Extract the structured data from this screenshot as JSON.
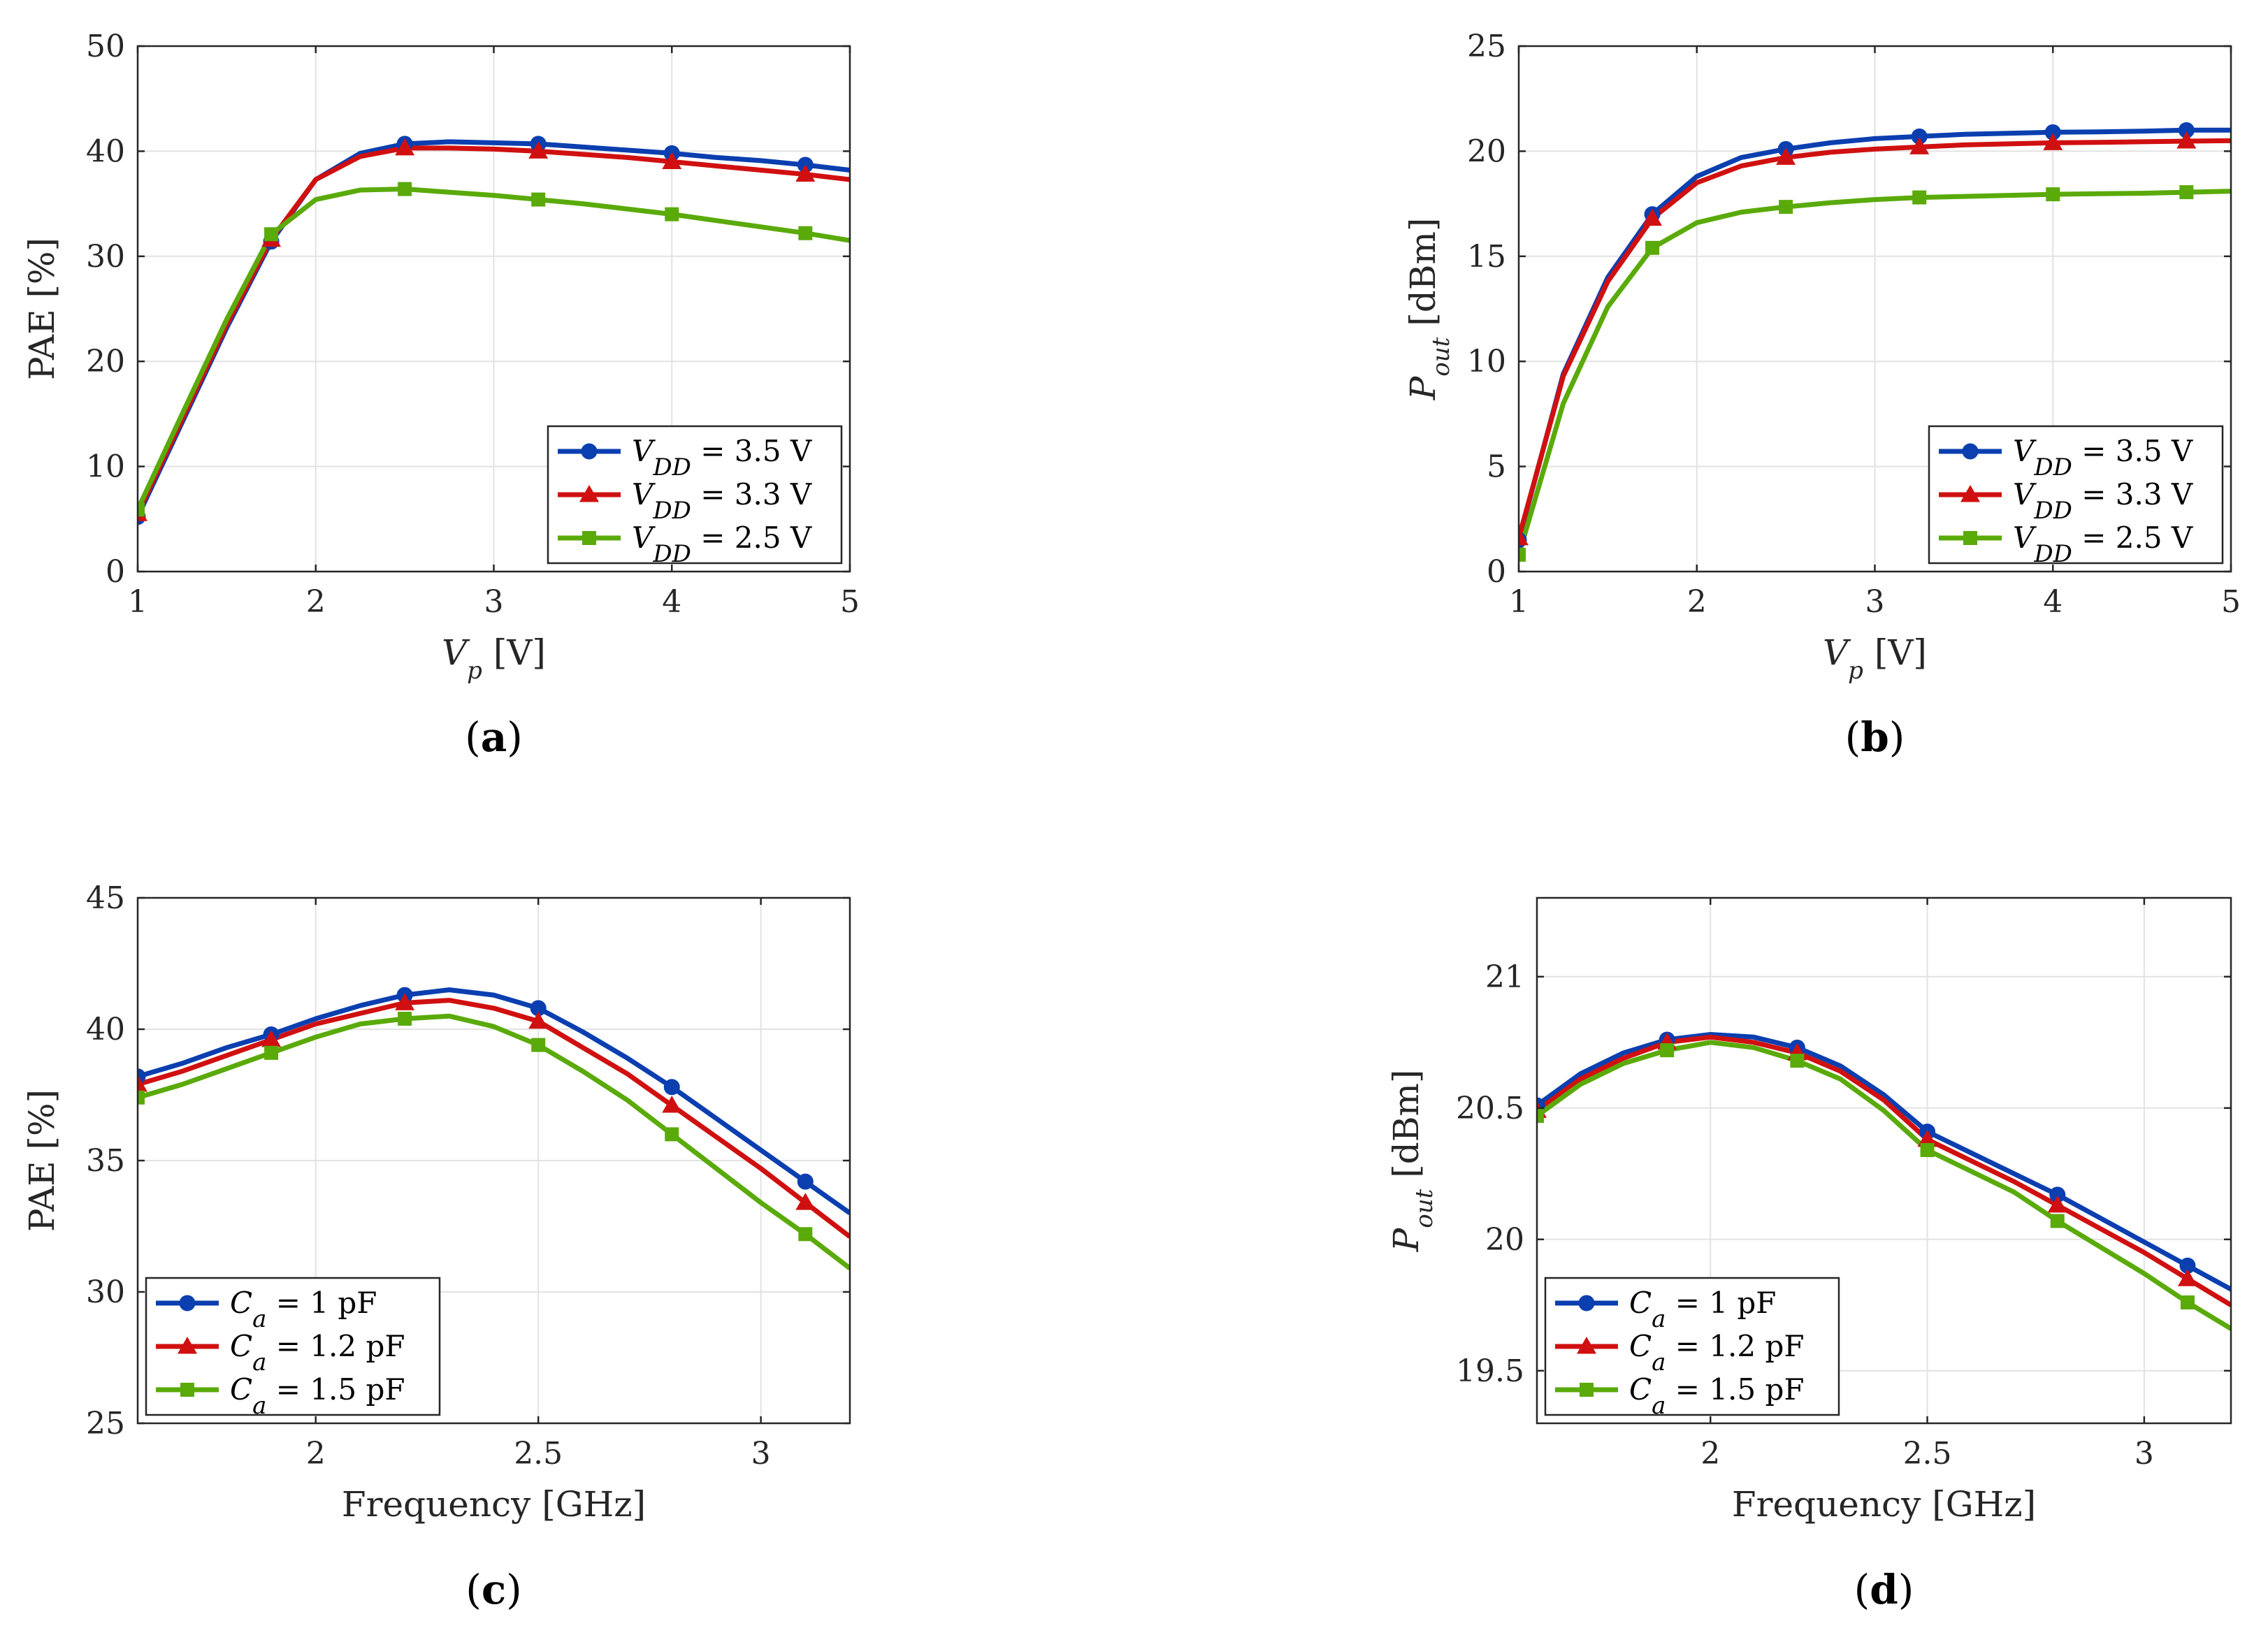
{
  "chart_data": [
    {
      "type": "line",
      "caption": "a",
      "xlabel": "V_p [V]",
      "ylabel": "PAE [%]",
      "xlim": [
        1,
        5
      ],
      "ylim": [
        0,
        50
      ],
      "xticks": [
        1,
        2,
        3,
        4,
        5
      ],
      "yticks": [
        0,
        10,
        20,
        30,
        40,
        50
      ],
      "xtick_labels": [
        "1",
        "2",
        "3",
        "4",
        "5"
      ],
      "ytick_labels": [
        "0",
        "10",
        "20",
        "30",
        "40",
        "50"
      ],
      "grid": true,
      "legend_position": "bottom-right",
      "x": [
        1,
        1.25,
        1.5,
        1.75,
        2,
        2.25,
        2.5,
        2.75,
        3,
        3.25,
        3.5,
        3.75,
        4,
        4.25,
        4.5,
        4.75,
        5
      ],
      "marker_x": [
        1,
        1.75,
        2.5,
        3.25,
        4,
        4.75
      ],
      "series": [
        {
          "name": "V_DD = 3.5 V",
          "legend_var": "V",
          "legend_sub": "DD",
          "legend_text": "= 3.5 V",
          "color": "#0b3fb0",
          "marker": "circle",
          "values": [
            5.2,
            14.2,
            23.2,
            31.4,
            37.3,
            39.8,
            40.7,
            40.9,
            40.8,
            40.7,
            40.4,
            40.1,
            39.8,
            39.4,
            39.1,
            38.7,
            38.2
          ]
        },
        {
          "name": "V_DD = 3.3 V",
          "legend_var": "V",
          "legend_sub": "DD",
          "legend_text": "= 3.3 V",
          "color": "#d01010",
          "marker": "triangle",
          "values": [
            5.5,
            14.5,
            23.5,
            31.6,
            37.3,
            39.5,
            40.3,
            40.3,
            40.2,
            40.0,
            39.7,
            39.4,
            39.0,
            38.6,
            38.2,
            37.8,
            37.3
          ]
        },
        {
          "name": "V_DD = 2.5 V",
          "legend_var": "V",
          "legend_sub": "DD",
          "legend_text": "= 2.5 V",
          "color": "#5aaa0a",
          "marker": "square",
          "values": [
            5.9,
            15.0,
            24.0,
            32.1,
            35.4,
            36.3,
            36.4,
            36.1,
            35.8,
            35.4,
            35.0,
            34.5,
            34.0,
            33.4,
            32.8,
            32.2,
            31.5
          ]
        }
      ]
    },
    {
      "type": "line",
      "caption": "b",
      "xlabel": "V_p [V]",
      "ylabel": "P_out [dBm]",
      "xlim": [
        1,
        5
      ],
      "ylim": [
        0,
        25
      ],
      "xticks": [
        1,
        2,
        3,
        4,
        5
      ],
      "yticks": [
        0,
        5,
        10,
        15,
        20,
        25
      ],
      "xtick_labels": [
        "1",
        "2",
        "3",
        "4",
        "5"
      ],
      "ytick_labels": [
        "0",
        "5",
        "10",
        "15",
        "20",
        "25"
      ],
      "grid": true,
      "legend_position": "bottom-right",
      "x": [
        1,
        1.25,
        1.5,
        1.75,
        2,
        2.25,
        2.5,
        2.75,
        3,
        3.25,
        3.5,
        3.75,
        4,
        4.25,
        4.5,
        4.75,
        5
      ],
      "marker_x": [
        1,
        1.75,
        2.5,
        3.25,
        4,
        4.75
      ],
      "series": [
        {
          "name": "V_DD = 3.5 V",
          "legend_var": "V",
          "legend_sub": "DD",
          "legend_text": "= 3.5 V",
          "color": "#0b3fb0",
          "marker": "circle",
          "values": [
            1.5,
            9.4,
            14.0,
            17.0,
            18.8,
            19.7,
            20.1,
            20.4,
            20.6,
            20.7,
            20.8,
            20.85,
            20.9,
            20.92,
            20.95,
            21.0,
            21.0
          ]
        },
        {
          "name": "V_DD = 3.3 V",
          "legend_var": "V",
          "legend_sub": "DD",
          "legend_text": "= 3.3 V",
          "color": "#d01010",
          "marker": "triangle",
          "values": [
            1.6,
            9.3,
            13.8,
            16.8,
            18.5,
            19.3,
            19.7,
            19.95,
            20.1,
            20.2,
            20.3,
            20.35,
            20.4,
            20.42,
            20.45,
            20.48,
            20.5
          ]
        },
        {
          "name": "V_DD = 2.5 V",
          "legend_var": "V",
          "legend_sub": "DD",
          "legend_text": "= 2.5 V",
          "color": "#5aaa0a",
          "marker": "square",
          "values": [
            0.8,
            8.0,
            12.6,
            15.4,
            16.6,
            17.1,
            17.35,
            17.55,
            17.7,
            17.8,
            17.85,
            17.9,
            17.95,
            17.98,
            18.0,
            18.05,
            18.1
          ]
        }
      ]
    },
    {
      "type": "line",
      "caption": "c",
      "xlabel": "Frequency [GHz]",
      "ylabel": "PAE [%]",
      "xlim": [
        1.6,
        3.2
      ],
      "ylim": [
        25,
        45
      ],
      "xticks": [
        2,
        2.5,
        3
      ],
      "yticks": [
        25,
        30,
        35,
        40,
        45
      ],
      "xtick_labels": [
        "2",
        "2.5",
        "3"
      ],
      "ytick_labels": [
        "25",
        "30",
        "35",
        "40",
        "45"
      ],
      "grid": true,
      "legend_position": "bottom-left",
      "x": [
        1.6,
        1.7,
        1.8,
        1.9,
        2.0,
        2.1,
        2.2,
        2.3,
        2.4,
        2.5,
        2.6,
        2.7,
        2.8,
        2.9,
        3.0,
        3.1,
        3.2
      ],
      "marker_x": [
        1.6,
        1.9,
        2.2,
        2.5,
        2.8,
        3.1
      ],
      "series": [
        {
          "name": "C_a = 1 pF",
          "legend_var": "C",
          "legend_sub": "a",
          "legend_text": "= 1 pF",
          "color": "#0b3fb0",
          "marker": "circle",
          "values": [
            38.2,
            38.7,
            39.3,
            39.8,
            40.4,
            40.9,
            41.3,
            41.5,
            41.3,
            40.8,
            39.9,
            38.9,
            37.8,
            36.6,
            35.4,
            34.2,
            33.0
          ]
        },
        {
          "name": "C_a = 1.2 pF",
          "legend_var": "C",
          "legend_sub": "a",
          "legend_text": "= 1.2 pF",
          "color": "#d01010",
          "marker": "triangle",
          "values": [
            37.9,
            38.4,
            39.0,
            39.6,
            40.2,
            40.6,
            41.0,
            41.1,
            40.8,
            40.3,
            39.3,
            38.3,
            37.1,
            35.9,
            34.7,
            33.4,
            32.1
          ]
        },
        {
          "name": "C_a = 1.5 pF",
          "legend_var": "C",
          "legend_sub": "a",
          "legend_text": "= 1.5 pF",
          "color": "#5aaa0a",
          "marker": "square",
          "values": [
            37.4,
            37.9,
            38.5,
            39.1,
            39.7,
            40.2,
            40.4,
            40.5,
            40.1,
            39.4,
            38.4,
            37.3,
            36.0,
            34.7,
            33.4,
            32.2,
            30.9
          ]
        }
      ]
    },
    {
      "type": "line",
      "caption": "d",
      "xlabel": "Frequency [GHz]",
      "ylabel": "P_out [dBm]",
      "xlim": [
        1.6,
        3.2
      ],
      "ylim": [
        19.3,
        21.3
      ],
      "xticks": [
        2,
        2.5,
        3
      ],
      "yticks": [
        19.5,
        20,
        20.5,
        21
      ],
      "xtick_labels": [
        "2",
        "2.5",
        "3"
      ],
      "ytick_labels": [
        "19.5",
        "20",
        "20.5",
        "21"
      ],
      "grid": true,
      "legend_position": "bottom-left",
      "x": [
        1.6,
        1.7,
        1.8,
        1.9,
        2.0,
        2.1,
        2.2,
        2.3,
        2.4,
        2.5,
        2.6,
        2.7,
        2.8,
        2.9,
        3.0,
        3.1,
        3.2
      ],
      "marker_x": [
        1.6,
        1.9,
        2.2,
        2.5,
        2.8,
        3.1
      ],
      "series": [
        {
          "name": "C_a = 1 pF",
          "legend_var": "C",
          "legend_sub": "a",
          "legend_text": "= 1 pF",
          "color": "#0b3fb0",
          "marker": "circle",
          "values": [
            20.51,
            20.63,
            20.71,
            20.76,
            20.78,
            20.77,
            20.73,
            20.66,
            20.55,
            20.41,
            20.33,
            20.25,
            20.17,
            20.08,
            19.99,
            19.9,
            19.81
          ]
        },
        {
          "name": "C_a = 1.2 pF",
          "legend_var": "C",
          "legend_sub": "a",
          "legend_text": "= 1.2 pF",
          "color": "#d01010",
          "marker": "triangle",
          "values": [
            20.49,
            20.61,
            20.69,
            20.75,
            20.77,
            20.75,
            20.71,
            20.64,
            20.53,
            20.38,
            20.3,
            20.22,
            20.13,
            20.04,
            19.95,
            19.85,
            19.75
          ]
        },
        {
          "name": "C_a = 1.5 pF",
          "legend_var": "C",
          "legend_sub": "a",
          "legend_text": "= 1.5 pF",
          "color": "#5aaa0a",
          "marker": "square",
          "values": [
            20.47,
            20.59,
            20.67,
            20.72,
            20.75,
            20.73,
            20.68,
            20.61,
            20.49,
            20.34,
            20.26,
            20.18,
            20.07,
            19.97,
            19.87,
            19.76,
            19.66
          ]
        }
      ]
    }
  ]
}
